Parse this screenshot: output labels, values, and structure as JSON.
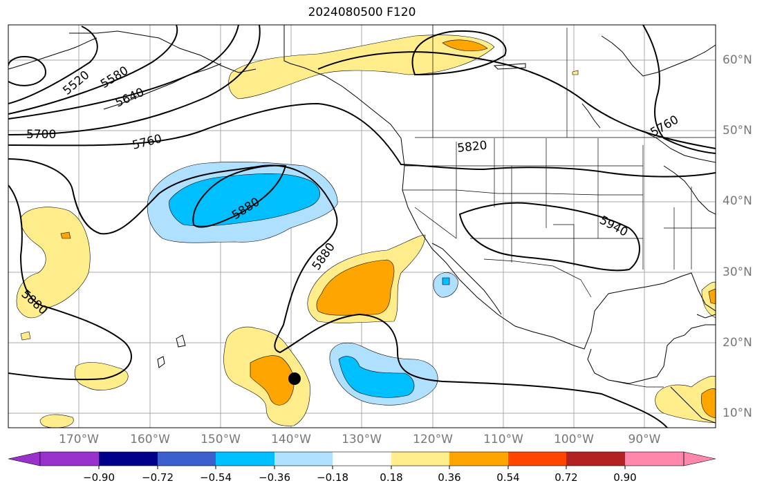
{
  "title": "2024080500 F120",
  "latitude_labels": [
    "60°N",
    "50°N",
    "40°N",
    "30°N",
    "20°N",
    "10°N"
  ],
  "longitude_labels": [
    "170°W",
    "160°W",
    "150°W",
    "140°W",
    "130°W",
    "120°W",
    "110°W",
    "100°W",
    "90°W"
  ],
  "colorbar": {
    "ticks": [
      "−0.90",
      "−0.72",
      "−0.54",
      "−0.36",
      "−0.18",
      "0.18",
      "0.36",
      "0.54",
      "0.72",
      "0.90"
    ],
    "colors": [
      "#9932cc",
      "#00008b",
      "#3a5fcd",
      "#00bfff",
      "#b0e0ff",
      "#ffffff",
      "#ffec8b",
      "#ffa500",
      "#ff4500",
      "#b22222",
      "#ff88aa"
    ]
  },
  "contour_labels": [
    "5520",
    "5580",
    "5640",
    "5700",
    "5760",
    "5820",
    "5880",
    "5880",
    "5880",
    "5940",
    "5760"
  ],
  "marker": "black-dot"
}
